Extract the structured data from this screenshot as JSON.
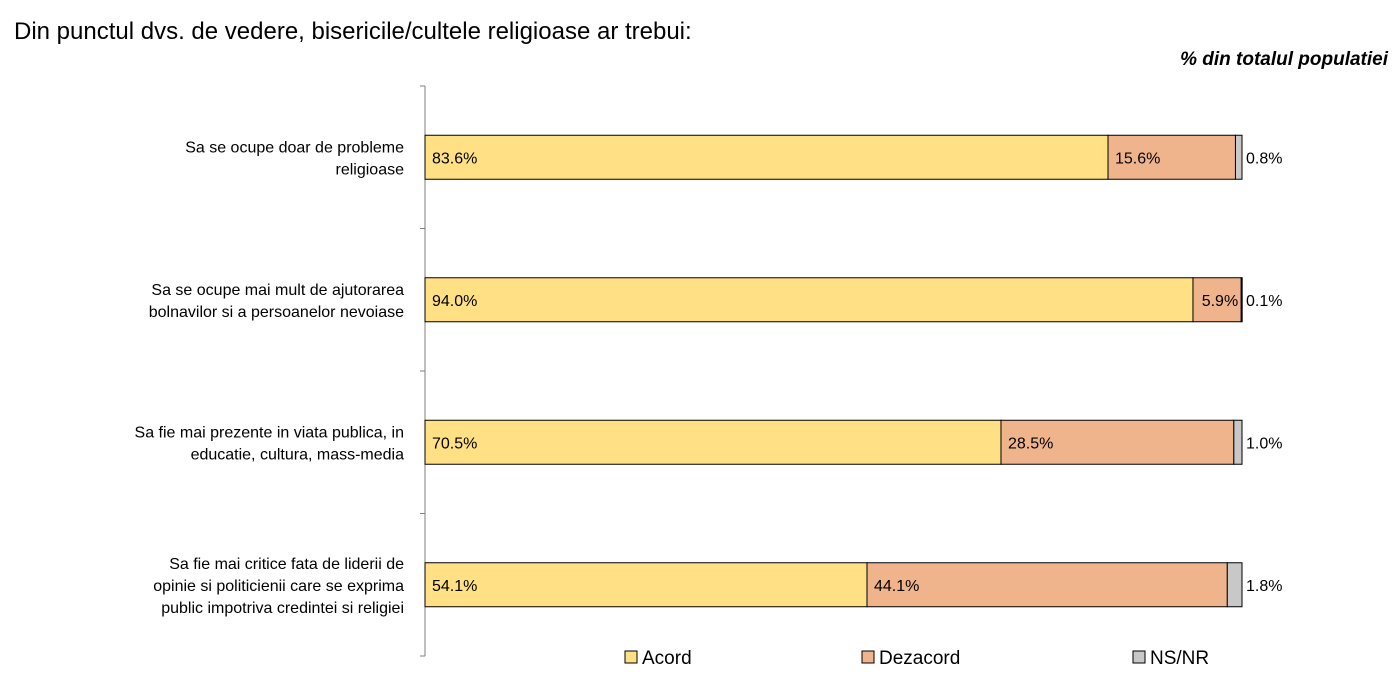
{
  "title": "Din punctul dvs. de vedere, bisericile/cultele religioase ar trebui:",
  "subtitle": "% din totalul populatiei",
  "chart_data": {
    "type": "bar",
    "orientation": "horizontal",
    "stacked": true,
    "categories": [
      [
        "Sa se ocupe doar de probleme",
        "religioase"
      ],
      [
        "Sa se ocupe mai mult de ajutorarea",
        "bolnavilor si a persoanelor nevoiase"
      ],
      [
        "Sa fie mai prezente in viata publica, in",
        "educatie, cultura, mass-media"
      ],
      [
        "Sa fie mai critice fata de liderii de",
        "opinie si politicienii care se exprima",
        "public impotriva credintei si religiei"
      ]
    ],
    "series": [
      {
        "name": "Acord",
        "color": "#FFE085",
        "values": [
          83.6,
          94.0,
          70.5,
          54.1
        ],
        "labels": [
          "83.6%",
          "94.0%",
          "70.5%",
          "54.1%"
        ]
      },
      {
        "name": "Dezacord",
        "color": "#F0B48C",
        "values": [
          15.6,
          5.9,
          28.5,
          44.1
        ],
        "labels": [
          "15.6%",
          "5.9%",
          "28.5%",
          "44.1%"
        ]
      },
      {
        "name": "NS/NR",
        "color": "#C8C8C8",
        "values": [
          0.8,
          0.1,
          1.0,
          1.8
        ],
        "labels": [
          "0.8%",
          "0.1%",
          "1.0%",
          "1.8%"
        ]
      }
    ],
    "xlim": [
      0,
      100
    ],
    "grid": false,
    "legend_position": "bottom"
  }
}
